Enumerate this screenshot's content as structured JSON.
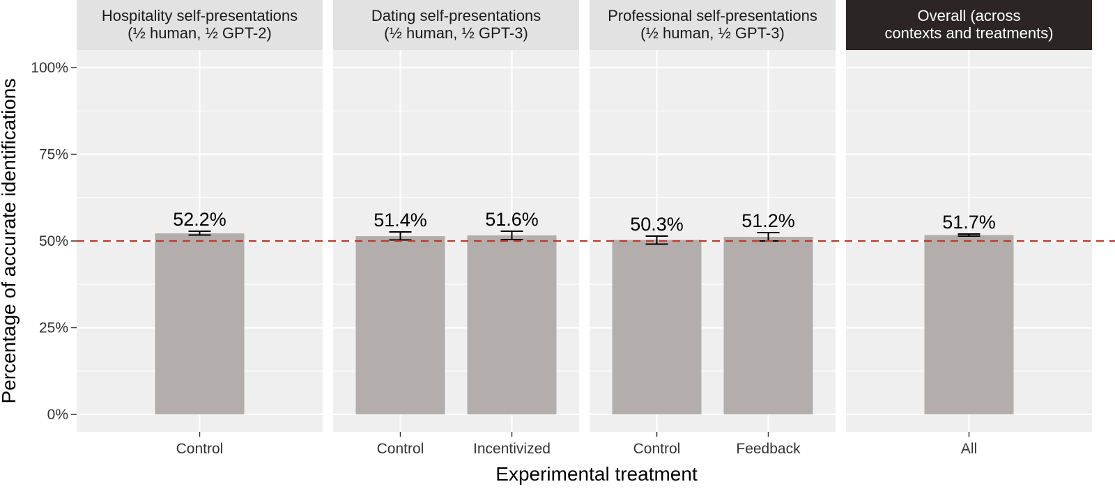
{
  "chart_data": {
    "type": "bar",
    "xlabel": "Experimental treatment",
    "ylabel": "Percentage of accurate identifications",
    "ylim": [
      0,
      1.1
    ],
    "y_ticks": [
      0,
      0.25,
      0.5,
      0.75,
      1.0
    ],
    "y_tick_labels": [
      "0%",
      "25%",
      "50%",
      "75%",
      "100%"
    ],
    "reference_line": {
      "y": 0.5,
      "style": "dashed",
      "color": "#c0392b"
    },
    "grid": true,
    "bar_color": "#b3aeab",
    "panel_background": "#efefef",
    "panels": [
      {
        "title_lines": [
          "Hospitality self-presentations",
          "(½ human, ½ GPT-2)"
        ],
        "highlight": false,
        "categories": [
          "Control"
        ],
        "values": [
          0.522
        ],
        "error_low": [
          0.517
        ],
        "error_high": [
          0.528
        ],
        "value_labels": [
          "52.2%"
        ]
      },
      {
        "title_lines": [
          "Dating self-presentations",
          "(½ human, ½ GPT-3)"
        ],
        "highlight": false,
        "categories": [
          "Control",
          "Incentivized"
        ],
        "values": [
          0.514,
          0.516
        ],
        "error_low": [
          0.503,
          0.504
        ],
        "error_high": [
          0.526,
          0.528
        ],
        "value_labels": [
          "51.4%",
          "51.6%"
        ]
      },
      {
        "title_lines": [
          "Professional self-presentations",
          "(½ human, ½ GPT-3)"
        ],
        "highlight": false,
        "categories": [
          "Control",
          "Feedback"
        ],
        "values": [
          0.503,
          0.512
        ],
        "error_low": [
          0.491,
          0.5
        ],
        "error_high": [
          0.514,
          0.524
        ],
        "value_labels": [
          "50.3%",
          "51.2%"
        ]
      },
      {
        "title_lines": [
          "Overall (across",
          "contexts and treatments)"
        ],
        "highlight": true,
        "categories": [
          "All"
        ],
        "values": [
          0.517
        ],
        "error_low": [
          0.514
        ],
        "error_high": [
          0.52
        ],
        "value_labels": [
          "51.7%"
        ]
      }
    ]
  }
}
